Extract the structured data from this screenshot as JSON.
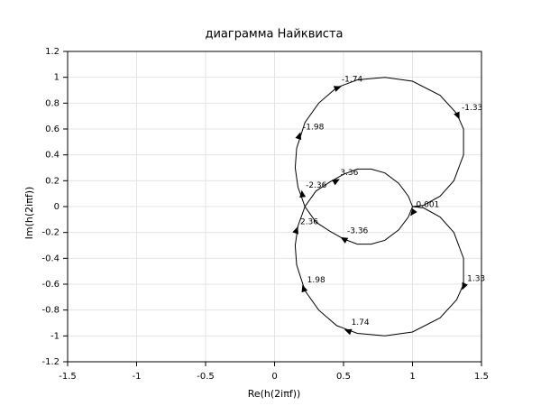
{
  "chart_data": {
    "type": "line",
    "title": "диаграмма Найквиста",
    "x_label": "Re(h(2iπf))",
    "y_label": "Im(h(2iπf))",
    "xlim": [
      -1.5,
      1.5
    ],
    "ylim": [
      -1.2,
      1.2
    ],
    "xticks": [
      -1.5,
      -1,
      -0.5,
      0,
      0.5,
      1,
      1.5
    ],
    "yticks": [
      -1.2,
      -1,
      -0.8,
      -0.6,
      -0.4,
      -0.2,
      0,
      0.2,
      0.4,
      0.6,
      0.8,
      1,
      1.2
    ],
    "grid": true,
    "series": [
      {
        "color": "#000000",
        "x": [
          1.0,
          0.97,
          0.9,
          0.8,
          0.7,
          0.6,
          0.5,
          0.4,
          0.3,
          0.22,
          0.17,
          0.15,
          0.16,
          0.22,
          0.32,
          0.45,
          0.6,
          0.8,
          1.0,
          1.2,
          1.32,
          1.37,
          1.37,
          1.3,
          1.2,
          1.08,
          1.0,
          1.08,
          1.2,
          1.3,
          1.37,
          1.37,
          1.32,
          1.2,
          1.0,
          0.8,
          0.6,
          0.45,
          0.32,
          0.22,
          0.16,
          0.15,
          0.17,
          0.22,
          0.3,
          0.4,
          0.5,
          0.6,
          0.7,
          0.8,
          0.9,
          0.97,
          1.0
        ],
        "y": [
          0.0,
          -0.08,
          -0.18,
          -0.26,
          -0.29,
          -0.29,
          -0.25,
          -0.19,
          -0.12,
          0.0,
          0.15,
          0.3,
          0.45,
          0.65,
          0.8,
          0.92,
          0.98,
          1.0,
          0.97,
          0.86,
          0.72,
          0.6,
          0.4,
          0.2,
          0.08,
          0.01,
          0.0,
          -0.01,
          -0.08,
          -0.2,
          -0.4,
          -0.6,
          -0.72,
          -0.86,
          -0.97,
          -1.0,
          -0.98,
          -0.92,
          -0.8,
          -0.65,
          -0.45,
          -0.3,
          -0.15,
          0.0,
          0.12,
          0.19,
          0.25,
          0.29,
          0.29,
          0.26,
          0.18,
          0.08,
          0.0
        ]
      }
    ],
    "annotations": [
      {
        "label": "-1.74",
        "x": 0.46,
        "y": 0.92
      },
      {
        "label": "-1.33",
        "x": 1.33,
        "y": 0.7
      },
      {
        "label": "-1.98",
        "x": 0.18,
        "y": 0.55
      },
      {
        "label": "-2.36",
        "x": 0.2,
        "y": 0.1
      },
      {
        "label": "3.36",
        "x": 0.45,
        "y": 0.2
      },
      {
        "label": "0.001",
        "x": 1.0,
        "y": -0.05
      },
      {
        "label": "2.36",
        "x": 0.16,
        "y": -0.18
      },
      {
        "label": "-3.36",
        "x": 0.5,
        "y": -0.25
      },
      {
        "label": "1.98",
        "x": 0.21,
        "y": -0.63
      },
      {
        "label": "1.33",
        "x": 1.37,
        "y": -0.62
      },
      {
        "label": "1.74",
        "x": 0.53,
        "y": -0.96
      }
    ]
  }
}
